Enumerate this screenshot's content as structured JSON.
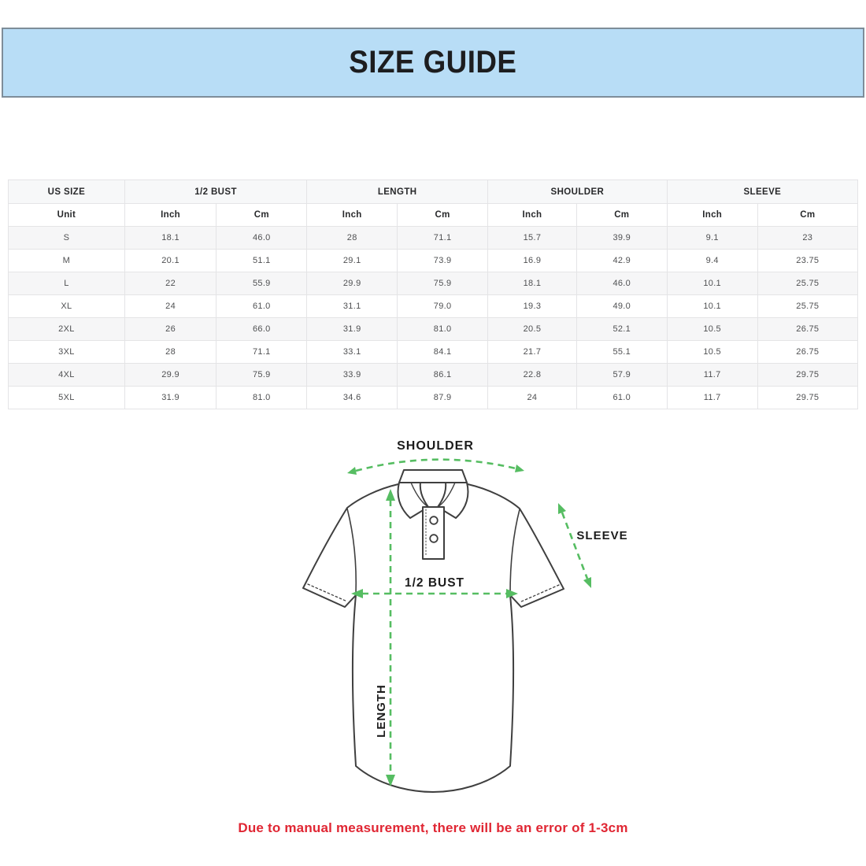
{
  "banner": {
    "title": "SIZE GUIDE"
  },
  "table": {
    "groups": [
      {
        "label": "US SIZE",
        "span": 1
      },
      {
        "label": "1/2 BUST",
        "span": 2
      },
      {
        "label": "LENGTH",
        "span": 2
      },
      {
        "label": "SHOULDER",
        "span": 2
      },
      {
        "label": "SLEEVE",
        "span": 2
      }
    ],
    "unit_row": [
      "Unit",
      "Inch",
      "Cm",
      "Inch",
      "Cm",
      "Inch",
      "Cm",
      "Inch",
      "Cm"
    ],
    "rows": [
      [
        "S",
        "18.1",
        "46.0",
        "28",
        "71.1",
        "15.7",
        "39.9",
        "9.1",
        "23"
      ],
      [
        "M",
        "20.1",
        "51.1",
        "29.1",
        "73.9",
        "16.9",
        "42.9",
        "9.4",
        "23.75"
      ],
      [
        "L",
        "22",
        "55.9",
        "29.9",
        "75.9",
        "18.1",
        "46.0",
        "10.1",
        "25.75"
      ],
      [
        "XL",
        "24",
        "61.0",
        "31.1",
        "79.0",
        "19.3",
        "49.0",
        "10.1",
        "25.75"
      ],
      [
        "2XL",
        "26",
        "66.0",
        "31.9",
        "81.0",
        "20.5",
        "52.1",
        "10.5",
        "26.75"
      ],
      [
        "3XL",
        "28",
        "71.1",
        "33.1",
        "84.1",
        "21.7",
        "55.1",
        "10.5",
        "26.75"
      ],
      [
        "4XL",
        "29.9",
        "75.9",
        "33.9",
        "86.1",
        "22.8",
        "57.9",
        "11.7",
        "29.75"
      ],
      [
        "5XL",
        "31.9",
        "81.0",
        "34.6",
        "87.9",
        "24",
        "61.0",
        "11.7",
        "29.75"
      ]
    ]
  },
  "diagram": {
    "labels": {
      "shoulder": "SHOULDER",
      "sleeve": "SLEEVE",
      "bust": "1/2 BUST",
      "length": "LENGTH"
    }
  },
  "footer": {
    "disclaimer": "Due to manual measurement, there will be an error of 1-3cm"
  },
  "colors": {
    "banner-bg": "#b8ddf6",
    "banner-border": "#7e8d99",
    "grid-border": "#e4e4e6",
    "head-bg": "#f7f8f9",
    "stripe-bg": "#f6f6f7",
    "arrow-green": "#56bd62",
    "outline-gray": "#3f3f3f",
    "disclaimer-red": "#e02633"
  }
}
